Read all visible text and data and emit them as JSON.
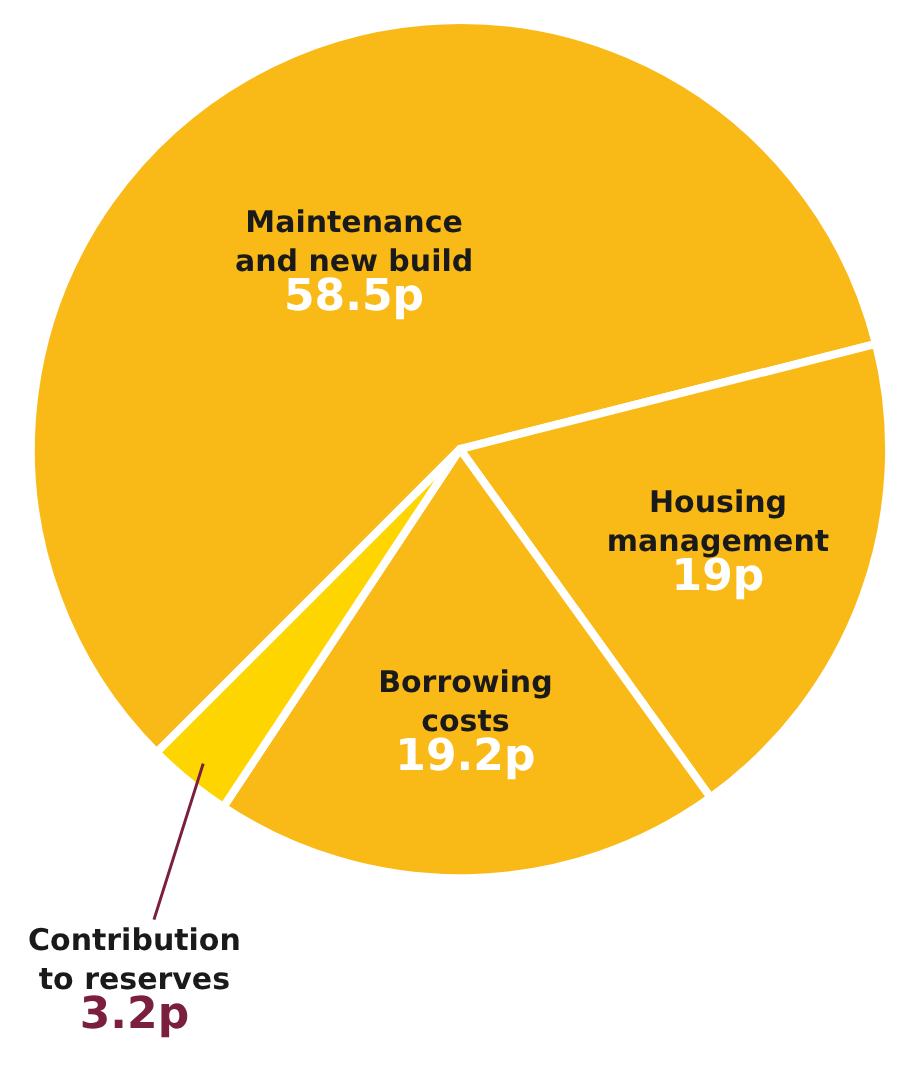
{
  "chart_data": {
    "type": "pie",
    "categories": [
      "Maintenance and new build",
      "Housing management",
      "Borrowing costs",
      "Contribution to reserves"
    ],
    "values": [
      58.5,
      19,
      19.2,
      3.2
    ],
    "value_labels": [
      "58.5p",
      "19p",
      "19.2p",
      "3.2p"
    ],
    "colors": [
      "#f9b917",
      "#f9b917",
      "#f9b917",
      "#ffd500"
    ],
    "legend": false
  }
}
